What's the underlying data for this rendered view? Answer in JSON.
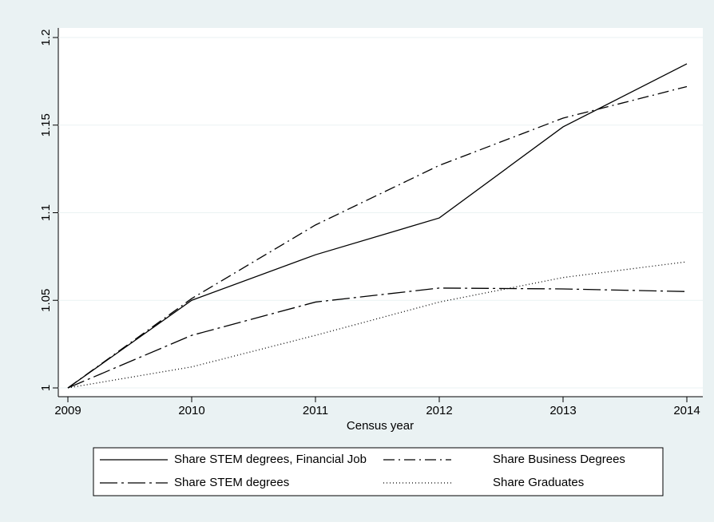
{
  "chart_data": {
    "type": "line",
    "x_label": "Census year",
    "x": [
      2009,
      2010,
      2011,
      2012,
      2013,
      2014
    ],
    "xlim": [
      2009,
      2014
    ],
    "xticks": [
      2009,
      2010,
      2011,
      2012,
      2013,
      2014
    ],
    "ylim": [
      1,
      1.2
    ],
    "yticks": [
      1,
      1.05,
      1.1,
      1.15,
      1.2
    ],
    "grid": true,
    "legend": "bottom",
    "series": [
      {
        "name": "Share STEM degrees, Financial Job",
        "color": "#000000",
        "dash": "solid",
        "values": [
          1,
          1.05,
          1.076,
          1.097,
          1.149,
          1.185
        ]
      },
      {
        "name": "Share Business Degrees",
        "color": "#000000",
        "dash": "dash-dot",
        "values": [
          1,
          1.051,
          1.093,
          1.127,
          1.154,
          1.172
        ]
      },
      {
        "name": "Share STEM degrees",
        "color": "#000000",
        "dash": "long-dash-dot",
        "values": [
          1,
          1.03,
          1.049,
          1.057,
          1.0565,
          1.055
        ]
      },
      {
        "name": "Share Graduates",
        "color": "#000000",
        "dash": "dot",
        "values": [
          1,
          1.012,
          1.03,
          1.049,
          1.063,
          1.072
        ]
      }
    ]
  }
}
